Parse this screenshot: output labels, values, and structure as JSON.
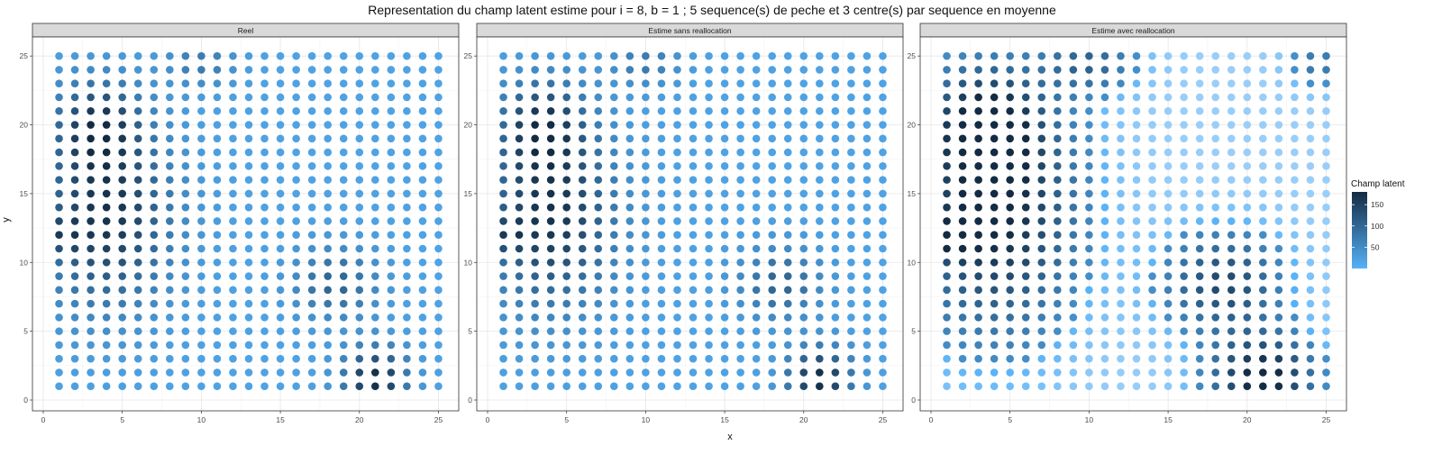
{
  "chart_data": {
    "type": "scatter",
    "title": "Representation du champ latent estime pour i = 8, b = 1 ; 5 sequence(s) de peche et 3 centre(s) par sequence en moyenne",
    "xlabel": "x",
    "ylabel": "y",
    "xlim": [
      0,
      25.6
    ],
    "ylim": [
      0,
      25.6
    ],
    "x_ticks": [
      0,
      5,
      10,
      15,
      20,
      25
    ],
    "y_ticks": [
      0,
      5,
      10,
      15,
      20,
      25
    ],
    "grid": true,
    "grid_points": {
      "x": [
        1,
        25
      ],
      "y": [
        1,
        25
      ]
    },
    "legend": {
      "title": "Champ latent",
      "placement": "right",
      "ticks": [
        50,
        100,
        150
      ],
      "range": [
        0,
        180
      ],
      "colors": {
        "low": "#56B1F7",
        "high": "#132B43"
      }
    },
    "panels": [
      {
        "name": "Reel",
        "hotspots": [
          {
            "x": 4,
            "y": 13.5,
            "sx": 2.8,
            "sy": 4.5,
            "value": 150
          },
          {
            "x": 3.5,
            "y": 20,
            "sx": 1.8,
            "sy": 2.2,
            "value": 120
          },
          {
            "x": 1,
            "y": 12,
            "sx": 1.0,
            "sy": 1.0,
            "value": 60
          },
          {
            "x": 18.5,
            "y": 8.5,
            "sx": 1.8,
            "sy": 1.8,
            "value": 85
          },
          {
            "x": 21,
            "y": 1.5,
            "sx": 1.4,
            "sy": 1.6,
            "value": 160
          },
          {
            "x": 10,
            "y": 24.5,
            "sx": 1.5,
            "sy": 1.2,
            "value": 55
          }
        ],
        "fade": 0
      },
      {
        "name": "Estime sans reallocation",
        "hotspots": [
          {
            "x": 4,
            "y": 13.5,
            "sx": 2.8,
            "sy": 4.5,
            "value": 150
          },
          {
            "x": 3.5,
            "y": 20,
            "sx": 1.8,
            "sy": 2.2,
            "value": 120
          },
          {
            "x": 1,
            "y": 12,
            "sx": 1.0,
            "sy": 1.0,
            "value": 60
          },
          {
            "x": 18.5,
            "y": 8.5,
            "sx": 1.8,
            "sy": 1.8,
            "value": 85
          },
          {
            "x": 21,
            "y": 1.5,
            "sx": 1.4,
            "sy": 1.6,
            "value": 160
          },
          {
            "x": 10,
            "y": 24.5,
            "sx": 1.5,
            "sy": 1.2,
            "value": 55
          }
        ],
        "fade": 0
      },
      {
        "name": "Estime avec reallocation",
        "hotspots": [
          {
            "x": 4,
            "y": 14,
            "sx": 3.5,
            "sy": 6.0,
            "value": 170
          },
          {
            "x": 3.5,
            "y": 20,
            "sx": 2.2,
            "sy": 2.5,
            "value": 130
          },
          {
            "x": 1,
            "y": 12,
            "sx": 1.2,
            "sy": 1.2,
            "value": 80
          },
          {
            "x": 18.5,
            "y": 8.5,
            "sx": 2.5,
            "sy": 2.5,
            "value": 120
          },
          {
            "x": 21,
            "y": 1.5,
            "sx": 2.2,
            "sy": 2.2,
            "value": 175
          },
          {
            "x": 10,
            "y": 24.5,
            "sx": 2.0,
            "sy": 1.5,
            "value": 80
          },
          {
            "x": 24.5,
            "y": 24.5,
            "sx": 1.2,
            "sy": 1.2,
            "value": 60
          }
        ],
        "fade": 1
      }
    ]
  }
}
